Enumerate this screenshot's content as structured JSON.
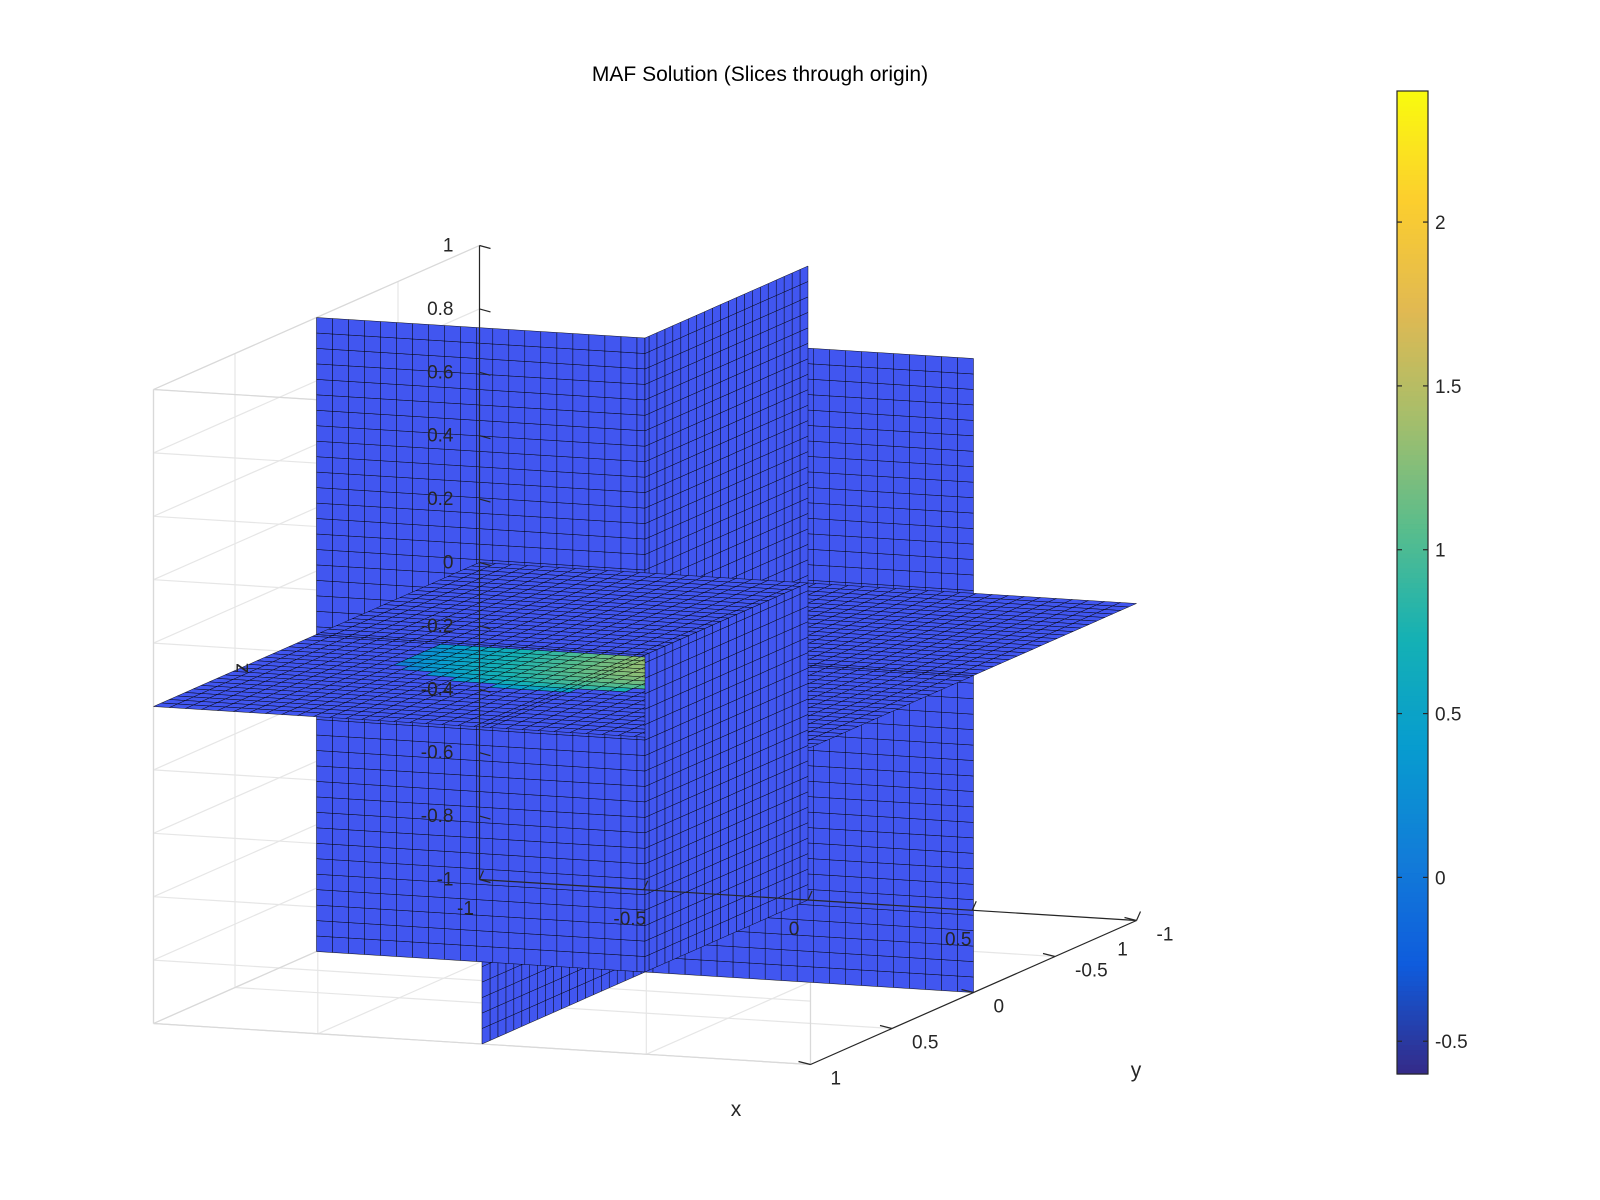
{
  "chart_data": {
    "type": "heatmap",
    "title": "MAF Solution (Slices through origin)",
    "xlabel": "x",
    "ylabel": "y",
    "zlabel": "z",
    "xlim": [
      -1,
      1
    ],
    "ylim": [
      -1,
      1
    ],
    "zlim": [
      -1,
      1
    ],
    "x_ticks": [
      "-1",
      "-0.5",
      "0",
      "0.5",
      "1"
    ],
    "y_ticks": [
      "-1",
      "-0.5",
      "0",
      "0.5",
      "1"
    ],
    "z_ticks": [
      "-1",
      "-0.8",
      "-0.6",
      "-0.4",
      "-0.2",
      "0",
      "0.2",
      "0.4",
      "0.6",
      "0.8",
      "1"
    ],
    "slices": [
      "x = 0",
      "y = 0",
      "z = 0"
    ],
    "grid_resolution": 41,
    "background_value": 0,
    "peak_value": 2.1,
    "colorbar": {
      "colormap": "parula",
      "clim": [
        -0.6,
        2.4
      ],
      "ticks": [
        "-0.5",
        "0",
        "0.5",
        "1",
        "1.5",
        "2"
      ]
    },
    "grid": true,
    "colors": {
      "background_slice": "#4156F0",
      "edge": "#000000",
      "grid": "#e6e6e6"
    }
  }
}
